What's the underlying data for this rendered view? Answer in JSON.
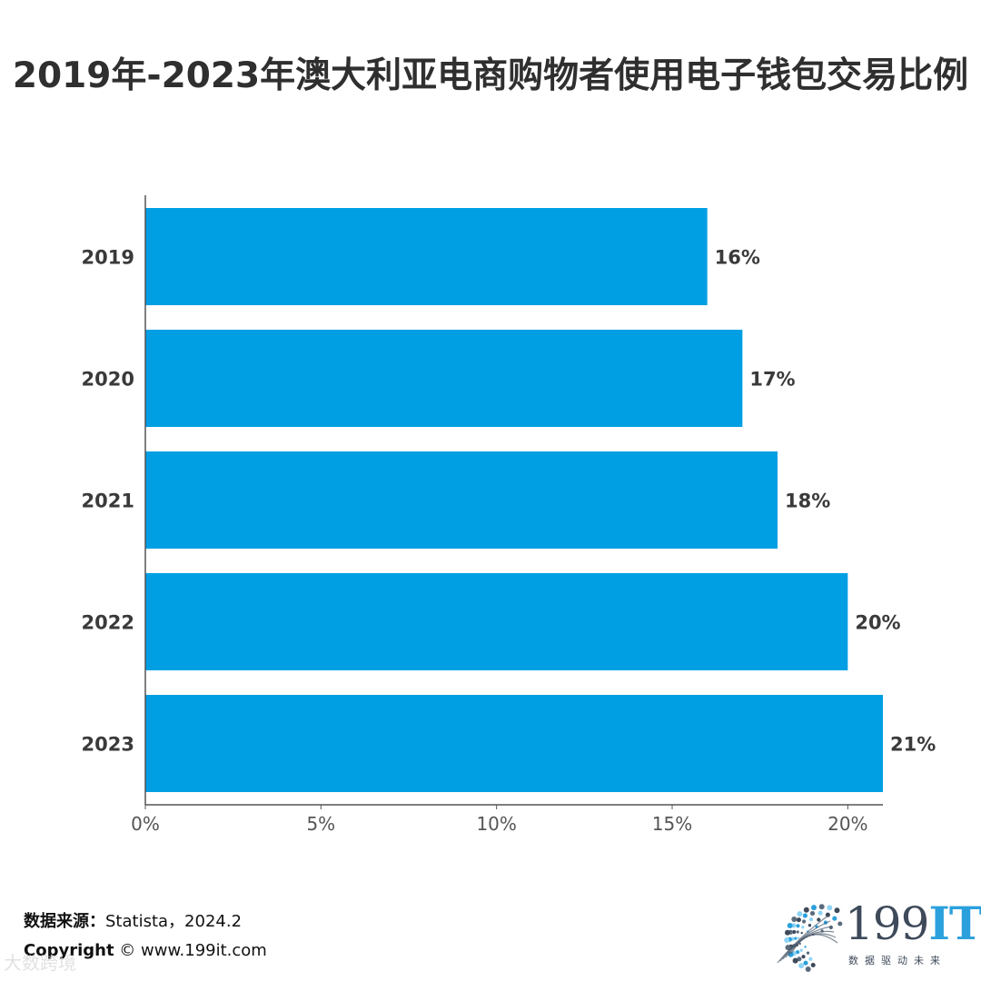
{
  "title": "2019年-2023年澳大利亚电商购物者使用电子钱包交易比例",
  "chart_data": {
    "type": "bar",
    "orientation": "horizontal",
    "categories": [
      "2019",
      "2020",
      "2021",
      "2022",
      "2023"
    ],
    "values": [
      16,
      17,
      18,
      20,
      21
    ],
    "value_labels": [
      "16%",
      "17%",
      "18%",
      "20%",
      "21%"
    ],
    "xlim": [
      0,
      21
    ],
    "xticks": [
      0,
      5,
      10,
      15,
      20
    ],
    "xtick_labels": [
      "0%",
      "5%",
      "10%",
      "15%",
      "20%"
    ],
    "bar_color": "#009fe3",
    "grid": false
  },
  "footer": {
    "source_label": "数据来源：",
    "source_value": "Statista，2024.2",
    "copyright_label": "Copyright",
    "copyright_value": "©  www.199it.com",
    "watermark": "大数跨境"
  },
  "logo": {
    "brand_num": "199",
    "brand_it": "IT",
    "tagline": "数据驱动未来",
    "icon": "dots-globe-icon"
  }
}
